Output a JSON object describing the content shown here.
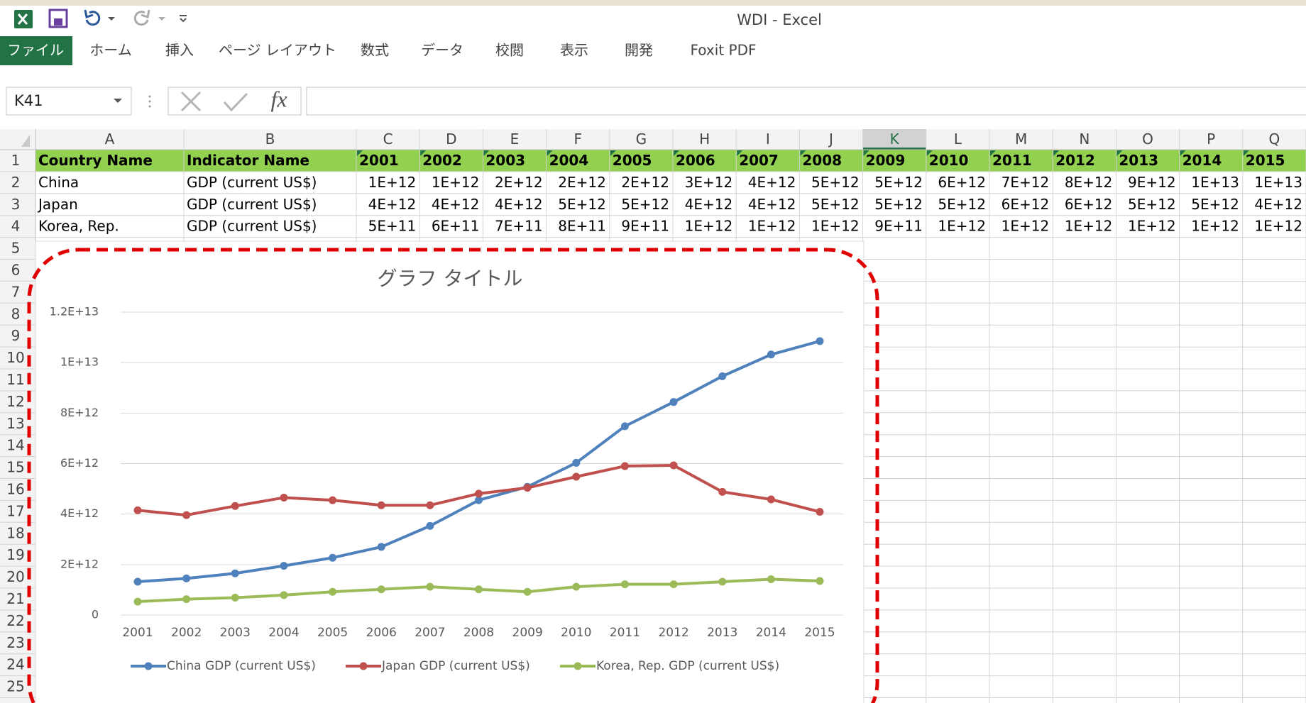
{
  "window": {
    "title": "WDI - Excel"
  },
  "ribbon": {
    "tabs": [
      "ファイル",
      "ホーム",
      "挿入",
      "ページ レイアウト",
      "数式",
      "データ",
      "校閲",
      "表示",
      "開発",
      "Foxit PDF"
    ]
  },
  "formula_bar": {
    "name_box": "K41",
    "function_label": "fx"
  },
  "sheet": {
    "columns": [
      "A",
      "B",
      "C",
      "D",
      "E",
      "F",
      "G",
      "H",
      "I",
      "J",
      "K",
      "L",
      "M",
      "N",
      "O",
      "P",
      "Q"
    ],
    "rows": [
      1,
      2,
      3,
      4,
      5,
      6,
      7,
      8,
      9,
      10,
      11,
      12,
      13,
      14,
      15,
      16,
      17,
      18,
      19,
      20,
      21,
      22,
      23,
      24,
      25
    ],
    "cells": [
      [
        "Country Name",
        "Indicator Name",
        "2001",
        "2002",
        "2003",
        "2004",
        "2005",
        "2006",
        "2007",
        "2008",
        "2009",
        "2010",
        "2011",
        "2012",
        "2013",
        "2014",
        "2015"
      ],
      [
        "China",
        "GDP (current US$)",
        "1E+12",
        "1E+12",
        "2E+12",
        "2E+12",
        "2E+12",
        "3E+12",
        "4E+12",
        "5E+12",
        "5E+12",
        "6E+12",
        "7E+12",
        "8E+12",
        "9E+12",
        "1E+13",
        "1E+13"
      ],
      [
        "Japan",
        "GDP (current US$)",
        "4E+12",
        "4E+12",
        "4E+12",
        "5E+12",
        "5E+12",
        "4E+12",
        "4E+12",
        "5E+12",
        "5E+12",
        "5E+12",
        "6E+12",
        "6E+12",
        "5E+12",
        "5E+12",
        "4E+12"
      ],
      [
        "Korea, Rep.",
        "GDP (current US$)",
        "5E+11",
        "6E+11",
        "7E+11",
        "8E+11",
        "9E+11",
        "1E+12",
        "1E+12",
        "1E+12",
        "9E+11",
        "1E+12",
        "1E+12",
        "1E+12",
        "1E+12",
        "1E+12",
        "1E+12"
      ]
    ]
  },
  "chart_data": {
    "type": "line",
    "title": "グラフ タイトル",
    "categories": [
      "2001",
      "2002",
      "2003",
      "2004",
      "2005",
      "2006",
      "2007",
      "2008",
      "2009",
      "2010",
      "2011",
      "2012",
      "2013",
      "2014",
      "2015"
    ],
    "series": [
      {
        "name": "China GDP (current US$)",
        "color": "#4f81bd",
        "values": [
          1320000000000.0,
          1450000000000.0,
          1650000000000.0,
          1950000000000.0,
          2270000000000.0,
          2700000000000.0,
          3530000000000.0,
          4550000000000.0,
          5080000000000.0,
          6030000000000.0,
          7480000000000.0,
          8440000000000.0,
          9460000000000.0,
          10320000000000.0,
          10850000000000.0
        ]
      },
      {
        "name": "Japan GDP (current US$)",
        "color": "#c0504d",
        "values": [
          4150000000000.0,
          3960000000000.0,
          4320000000000.0,
          4650000000000.0,
          4550000000000.0,
          4350000000000.0,
          4350000000000.0,
          4810000000000.0,
          5040000000000.0,
          5480000000000.0,
          5900000000000.0,
          5930000000000.0,
          4880000000000.0,
          4580000000000.0,
          4090000000000.0
        ]
      },
      {
        "name": "Korea, Rep. GDP (current US$)",
        "color": "#9bbb59",
        "values": [
          530000000000.0,
          630000000000.0,
          690000000000.0,
          790000000000.0,
          920000000000.0,
          1020000000000.0,
          1120000000000.0,
          1020000000000.0,
          920000000000.0,
          1120000000000.0,
          1220000000000.0,
          1220000000000.0,
          1320000000000.0,
          1420000000000.0,
          1350000000000.0
        ]
      }
    ],
    "ylim": [
      0,
      12000000000000.0
    ],
    "yticks": [
      0,
      {
        "value": 2000000000000.0,
        "label": "2E+12"
      },
      {
        "value": 4000000000000.0,
        "label": "4E+12"
      },
      {
        "value": 6000000000000.0,
        "label": "6E+12"
      },
      {
        "value": 8000000000000.0,
        "label": "8E+12"
      },
      {
        "value": 10000000000000.0,
        "label": "1E+13"
      },
      {
        "value": 12000000000000.0,
        "label": "1.2E+13"
      }
    ],
    "grid": true,
    "legend": "bottom"
  }
}
